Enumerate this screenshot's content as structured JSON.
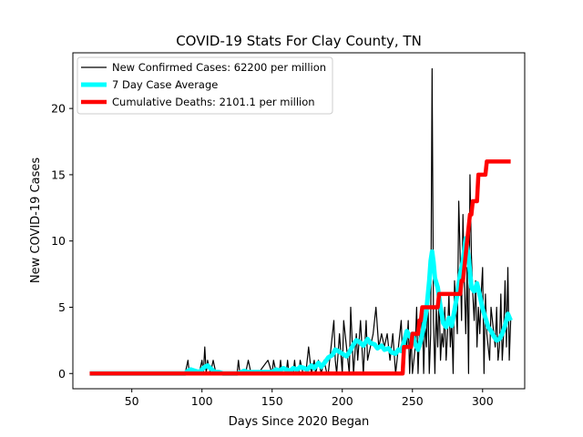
{
  "chart_data": {
    "type": "line",
    "title": "COVID-19 Stats For Clay County, TN",
    "xlabel": "Days Since 2020 Began",
    "ylabel": "New COVID-19 Cases",
    "xlim": [
      8,
      330
    ],
    "ylim": [
      -1.15,
      24.2
    ],
    "xticks": [
      50,
      100,
      150,
      200,
      250,
      300
    ],
    "yticks": [
      0,
      5,
      10,
      15,
      20
    ],
    "grid": false,
    "legend_position": "top-left",
    "series": [
      {
        "name": "New Confirmed Cases: 62200 per million",
        "color": "#000000",
        "x": [
          20,
          88,
          90,
          91,
          92,
          98,
          100,
          101,
          102,
          103,
          104,
          106,
          108,
          110,
          112,
          113,
          125,
          126,
          127,
          130,
          131,
          133,
          135,
          140,
          147,
          150,
          151,
          153,
          155,
          156,
          157,
          160,
          161,
          162,
          165,
          166,
          167,
          169,
          170,
          172,
          174,
          176,
          178,
          180,
          181,
          183,
          185,
          187,
          189,
          190,
          192,
          194,
          195,
          196,
          198,
          200,
          201,
          203,
          205,
          206,
          208,
          210,
          211,
          213,
          215,
          217,
          218,
          220,
          222,
          224,
          226,
          228,
          230,
          232,
          234,
          236,
          238,
          240,
          242,
          243,
          244,
          245,
          246,
          247,
          248,
          249,
          250,
          251,
          252,
          253,
          254,
          255,
          256,
          257,
          258,
          259,
          260,
          261,
          262,
          263,
          264,
          265,
          266,
          267,
          268,
          269,
          270,
          271,
          272,
          273,
          274,
          275,
          276,
          277,
          278,
          279,
          280,
          281,
          282,
          283,
          284,
          285,
          286,
          287,
          288,
          289,
          290,
          291,
          292,
          293,
          294,
          295,
          296,
          297,
          298,
          299,
          300,
          301,
          302,
          303,
          304,
          305,
          306,
          307,
          308,
          309,
          310,
          311,
          312,
          313,
          314,
          315,
          316,
          317,
          318,
          319,
          320
        ],
        "y": [
          0,
          0,
          1,
          0,
          0,
          0,
          1,
          0,
          2,
          0,
          1,
          0,
          1,
          0,
          0,
          0,
          0,
          1,
          0,
          0,
          0,
          1,
          0,
          0,
          1,
          0,
          1,
          0,
          0,
          1,
          0,
          0,
          1,
          0,
          0,
          1,
          0,
          0,
          1,
          0,
          0,
          2,
          0,
          1,
          0,
          1,
          0,
          1,
          0,
          0,
          2,
          4,
          1,
          0,
          3,
          0,
          4,
          2,
          0,
          5,
          0,
          3,
          1,
          4,
          0,
          4,
          1,
          2,
          3,
          5,
          2,
          3,
          2,
          3,
          1,
          3,
          0,
          2,
          4,
          1,
          0,
          3,
          2,
          4,
          0,
          3,
          0,
          1,
          2,
          5,
          0,
          3,
          2,
          5,
          0,
          4,
          2,
          6,
          0,
          3,
          23,
          4,
          0,
          5,
          2,
          6,
          1,
          3,
          2,
          5,
          1,
          3,
          6,
          2,
          4,
          0,
          7,
          5,
          3,
          13,
          9,
          4,
          12,
          7,
          3,
          8,
          0,
          15,
          9,
          6,
          4,
          7,
          2,
          5,
          3,
          6,
          8,
          0,
          6,
          3,
          2,
          1,
          5,
          4,
          3,
          2,
          5,
          1,
          2,
          6,
          1,
          3,
          7,
          2,
          8,
          1,
          4
        ],
        "stroke_width": 1.2
      },
      {
        "name": "7 Day Case Average",
        "color": "#00ffff",
        "x": [
          20,
          88,
          90,
          92,
          95,
          98,
          100,
          102,
          104,
          106,
          108,
          110,
          112,
          115,
          125,
          128,
          130,
          133,
          150,
          153,
          155,
          158,
          160,
          163,
          165,
          168,
          170,
          173,
          175,
          178,
          180,
          183,
          185,
          188,
          190,
          193,
          195,
          197,
          200,
          203,
          205,
          208,
          210,
          212,
          215,
          218,
          220,
          223,
          225,
          228,
          230,
          233,
          235,
          238,
          240,
          242,
          244,
          246,
          248,
          250,
          252,
          254,
          256,
          258,
          260,
          262,
          263,
          264,
          265,
          266,
          268,
          270,
          272,
          274,
          276,
          278,
          280,
          282,
          284,
          286,
          288,
          290,
          292,
          294,
          296,
          298,
          300,
          302,
          304,
          306,
          308,
          310,
          312,
          314,
          316,
          318,
          320
        ],
        "y": [
          0,
          0,
          0.2,
          0.3,
          0.2,
          0.1,
          0.3,
          0.5,
          0.6,
          0.4,
          0.2,
          0.1,
          0.1,
          0,
          0,
          0.1,
          0.2,
          0.1,
          0.1,
          0.3,
          0.2,
          0.4,
          0.3,
          0.2,
          0.4,
          0.3,
          0.5,
          0.4,
          0.3,
          0.6,
          0.4,
          0.8,
          0.5,
          0.9,
          1.2,
          1.4,
          1.8,
          1.7,
          1.5,
          1.3,
          1.6,
          2.2,
          2.5,
          2.4,
          2.1,
          2.6,
          2.3,
          2.2,
          1.9,
          2.1,
          1.8,
          1.9,
          1.6,
          1.5,
          1.8,
          1.7,
          2.4,
          3.2,
          2.8,
          3.0,
          2.2,
          1.8,
          2.5,
          3.5,
          4.8,
          7.0,
          8.5,
          9.2,
          8.4,
          7.2,
          6.5,
          5.0,
          3.8,
          3.5,
          4.2,
          3.6,
          4.8,
          6.0,
          7.5,
          8.5,
          10.2,
          8.8,
          6.5,
          6.2,
          6.8,
          5.9,
          4.9,
          4.2,
          3.5,
          3.2,
          2.8,
          2.5,
          2.6,
          3.0,
          3.6,
          4.5,
          4.0
        ],
        "stroke_width": 5
      },
      {
        "name": "Cumulative Deaths: 2101.1 per million",
        "color": "#ff0000",
        "x": [
          20,
          243,
          244,
          248,
          249,
          250,
          254,
          255,
          256,
          257,
          258,
          268,
          269,
          270,
          284,
          285,
          286,
          287,
          288,
          289,
          290,
          291,
          292,
          293,
          294,
          295,
          296,
          297,
          298,
          299,
          300,
          301,
          302,
          303,
          304,
          320
        ],
        "y": [
          0,
          0,
          2,
          2,
          2,
          3,
          3,
          4,
          4,
          5,
          5,
          5,
          6,
          6,
          6,
          7,
          7,
          8,
          9,
          10,
          11,
          12,
          12,
          13,
          13,
          13,
          13,
          15,
          15,
          15,
          15,
          15,
          15,
          16,
          16,
          16
        ],
        "stroke_width": 4.5
      }
    ]
  }
}
